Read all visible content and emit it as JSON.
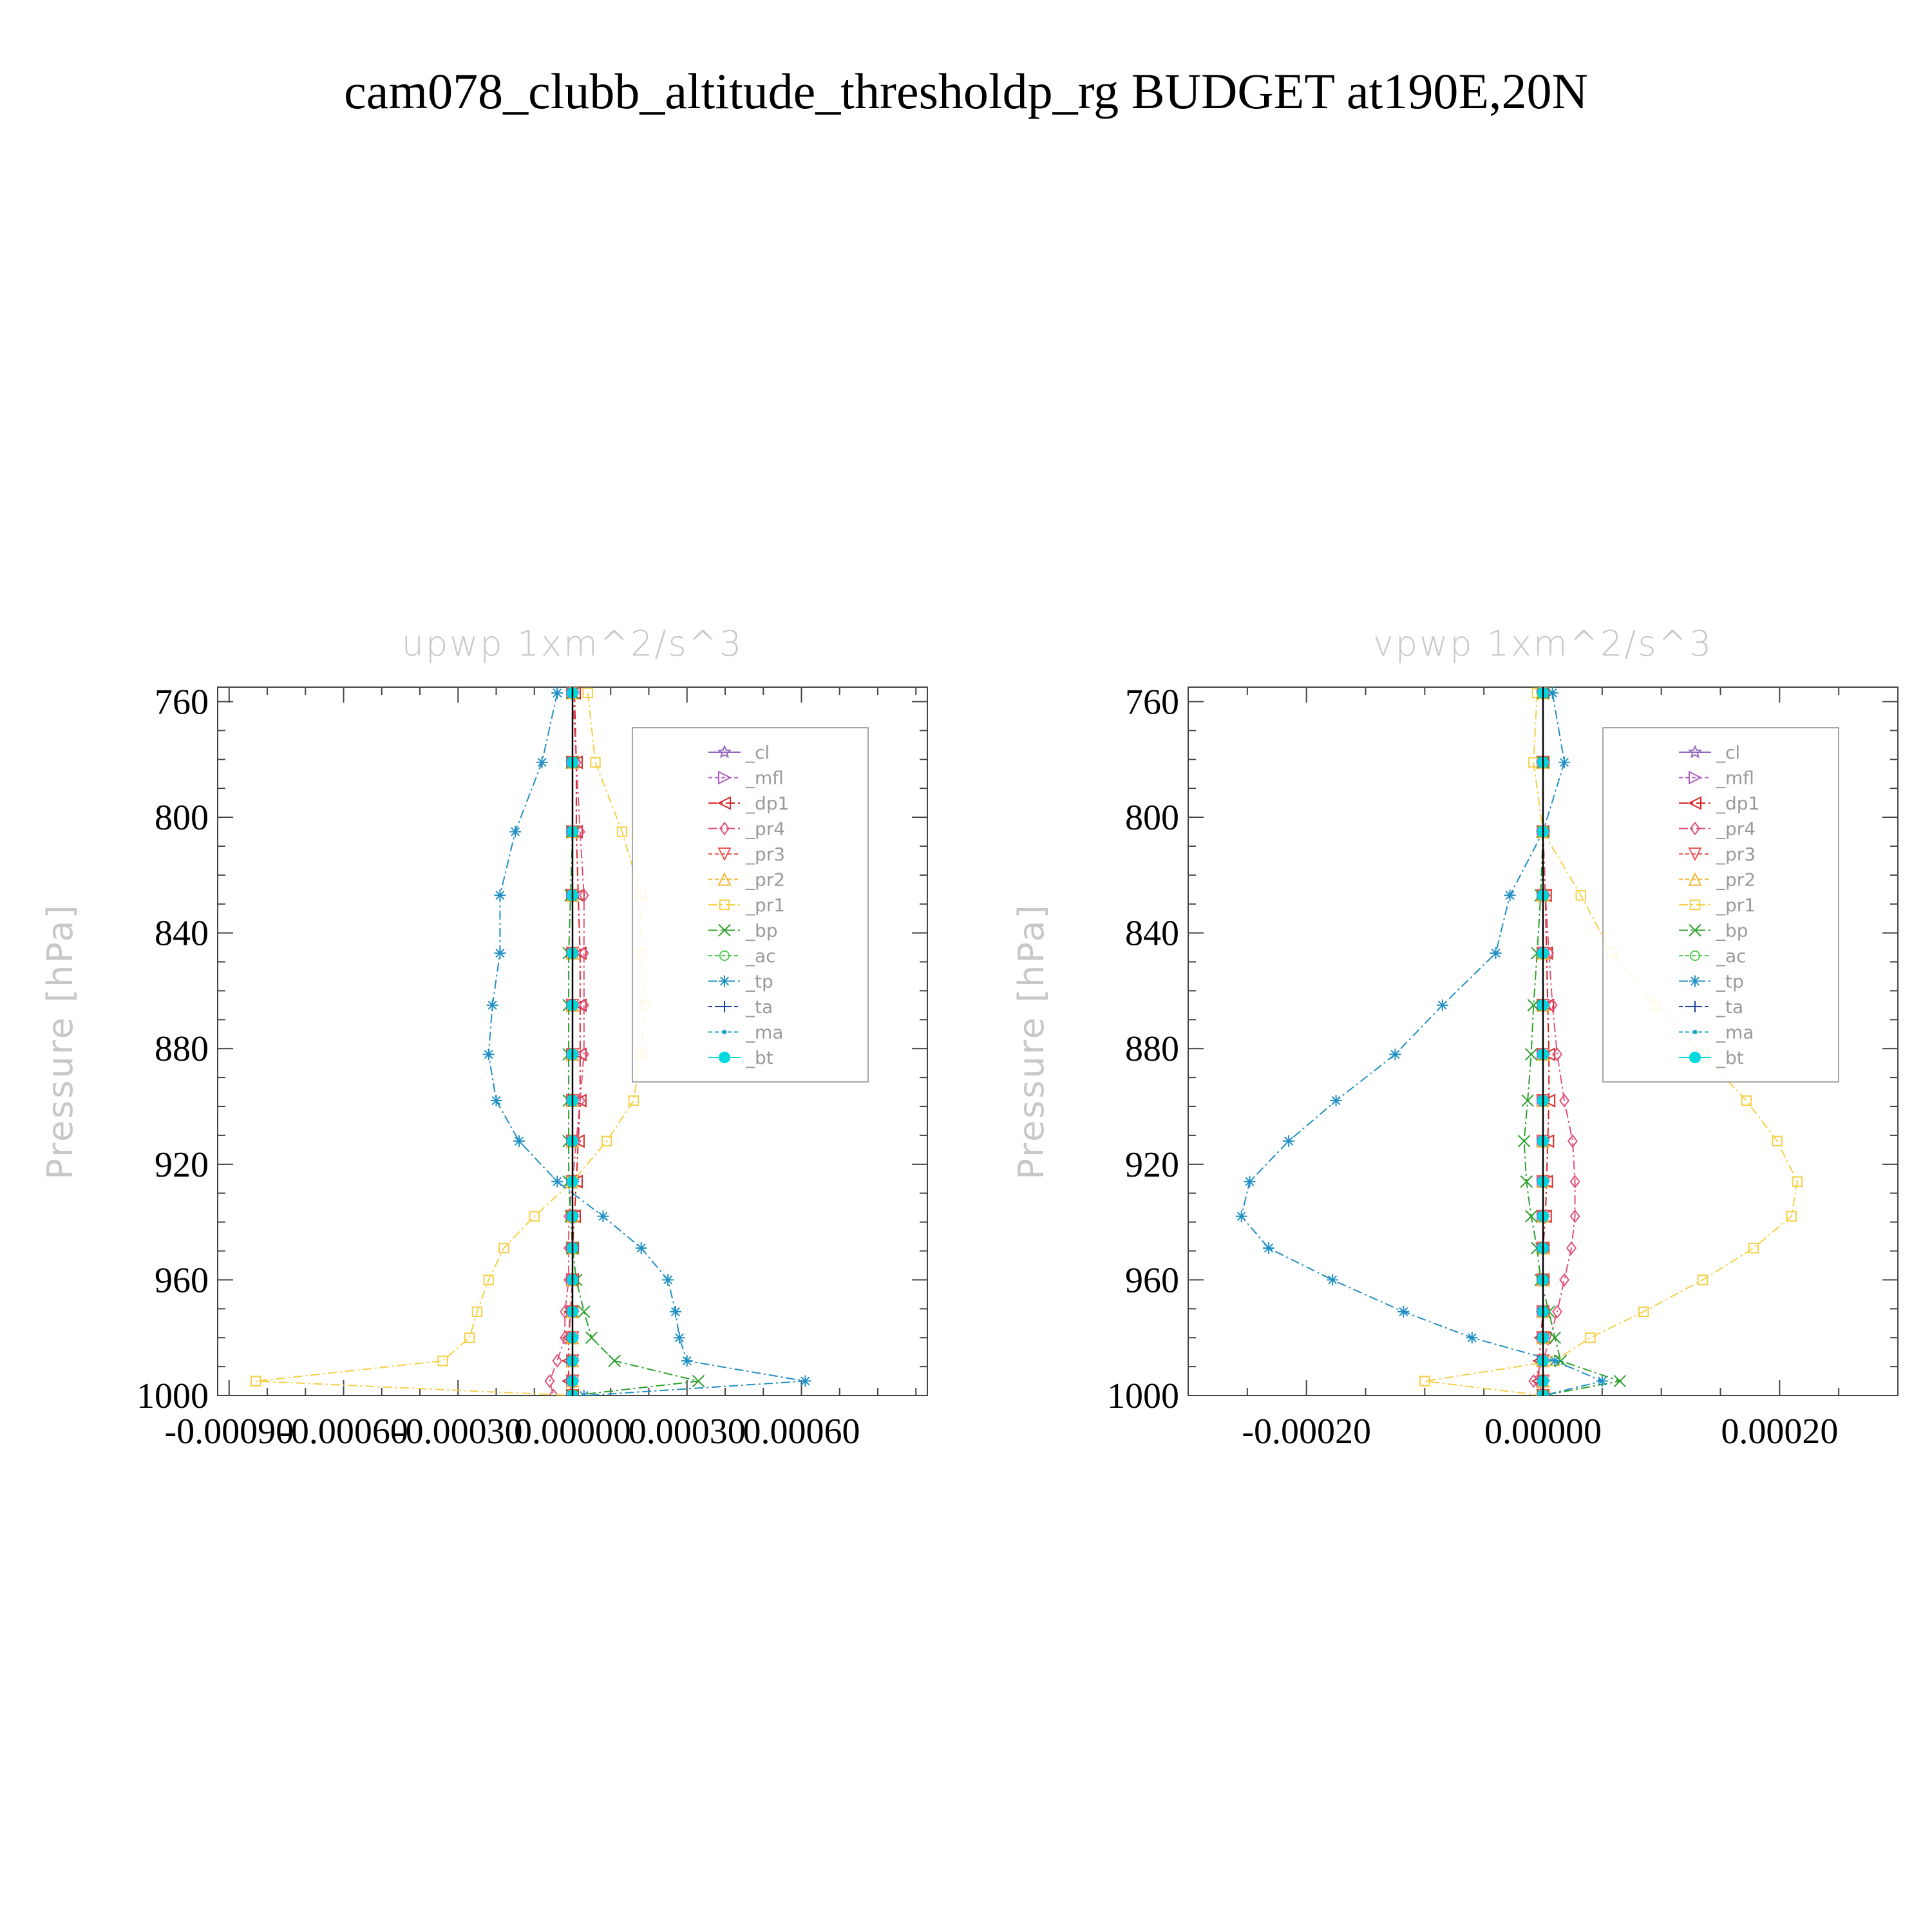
{
  "title": "cam078_clubb_altitude_thresholdp_rg  BUDGET at190E,20N",
  "chart_data": [
    {
      "type": "line",
      "title": "upwp    1xm^2/s^3",
      "ylabel": "Pressure  [hPa]",
      "xlabel": "",
      "xlim": [
        -0.00093,
        0.00093
      ],
      "ylim": [
        1000,
        755
      ],
      "y_inverted": true,
      "x_ticks": [
        -0.0009,
        -0.0006,
        -0.0003,
        0.0,
        0.0003,
        0.0006
      ],
      "x_tick_labels": [
        "-0.00090",
        "-0.00060",
        "-0.00030",
        "0.00000",
        "0.00030",
        "0.00060"
      ],
      "y_ticks": [
        760,
        800,
        840,
        880,
        920,
        960,
        1000
      ],
      "y_tick_labels": [
        "760",
        "800",
        "840",
        "880",
        "920",
        "960",
        "1000"
      ],
      "legend_position": "top-right",
      "grid": false,
      "levels": [
        757,
        781,
        805,
        827,
        847,
        865,
        882,
        898,
        912,
        926,
        938,
        949,
        960,
        971,
        980,
        988,
        995,
        1000
      ],
      "series": [
        {
          "name": "_cl",
          "color": "#9467bd",
          "marker": "star",
          "dash": "solid",
          "values": [
            0,
            0,
            0,
            0,
            0,
            0,
            0,
            0,
            0,
            0,
            0,
            0,
            0,
            0,
            0,
            0,
            0,
            0
          ]
        },
        {
          "name": "_mfl",
          "color": "#b05cc4",
          "marker": "triangle-right",
          "dash": "6 4",
          "values": [
            0,
            0,
            0,
            0,
            0,
            0,
            0,
            0,
            0,
            0,
            0,
            0,
            0,
            0,
            0,
            0,
            0,
            0
          ]
        },
        {
          "name": "_dp1",
          "color": "#d62728",
          "marker": "triangle-left",
          "dash": "14 5 3 5",
          "values": [
            5e-06,
            1e-05,
            1e-05,
            1.5e-05,
            2e-05,
            2e-05,
            2e-05,
            2e-05,
            1.5e-05,
            1e-05,
            5e-06,
            0,
            0,
            -5e-06,
            -1e-05,
            -1e-05,
            -1e-05,
            0
          ]
        },
        {
          "name": "_pr4",
          "color": "#e0507a",
          "marker": "diamond",
          "dash": "14 5 3 5",
          "values": [
            0,
            1e-05,
            2e-05,
            3e-05,
            3e-05,
            3e-05,
            3e-05,
            2e-05,
            1e-05,
            0,
            -1e-05,
            -1e-05,
            -1e-05,
            -2e-05,
            -2e-05,
            -4e-05,
            -6e-05,
            -5e-05
          ]
        },
        {
          "name": "_pr3",
          "color": "#ee5555",
          "marker": "triangle-down",
          "dash": "6 4",
          "values": [
            0,
            0,
            0,
            0,
            0,
            0,
            0,
            0,
            0,
            0,
            0,
            0,
            0,
            0,
            0,
            0,
            0,
            0
          ]
        },
        {
          "name": "_pr2",
          "color": "#f4b63a",
          "marker": "triangle-up",
          "dash": "6 4",
          "values": [
            0,
            0,
            0,
            0,
            0,
            0,
            0,
            0,
            0,
            0,
            0,
            0,
            0,
            0,
            0,
            0,
            0,
            0
          ]
        },
        {
          "name": "_pr1",
          "color": "#f7cf45",
          "marker": "square",
          "dash": "14 5 3 5",
          "values": [
            4e-05,
            6e-05,
            0.00013,
            0.00018,
            0.00018,
            0.00019,
            0.00018,
            0.00016,
            9e-05,
            0.0,
            -0.0001,
            -0.00018,
            -0.00022,
            -0.00025,
            -0.00027,
            -0.00034,
            -0.00083,
            0
          ]
        },
        {
          "name": "_bp",
          "color": "#2ca02c",
          "marker": "x",
          "dash": "14 5 3 5",
          "values": [
            0,
            0,
            0,
            -5e-06,
            -1e-05,
            -1e-05,
            -1e-05,
            -1e-05,
            -1e-05,
            -1e-05,
            -5e-06,
            0,
            1e-05,
            3e-05,
            5e-05,
            0.00011,
            0.00033,
            0
          ]
        },
        {
          "name": "_ac",
          "color": "#55cc55",
          "marker": "circle",
          "dash": "6 4",
          "values": [
            0,
            0,
            0,
            0,
            0,
            0,
            0,
            0,
            0,
            0,
            0,
            0,
            0,
            0,
            0,
            0,
            0,
            0
          ]
        },
        {
          "name": "_tp",
          "color": "#1f8fc4",
          "marker": "asterisk",
          "dash": "14 5 3 5",
          "values": [
            -4e-05,
            -8e-05,
            -0.00015,
            -0.00019,
            -0.00019,
            -0.00021,
            -0.00022,
            -0.0002,
            -0.00014,
            -4e-05,
            8e-05,
            0.00018,
            0.00025,
            0.00027,
            0.00028,
            0.0003,
            0.00061,
            3e-05
          ]
        },
        {
          "name": "_ta",
          "color": "#1f3fa8",
          "marker": "plus",
          "dash": "6 4",
          "values": [
            0,
            0,
            0,
            0,
            0,
            0,
            0,
            0,
            0,
            0,
            0,
            0,
            0,
            0,
            0,
            0,
            0,
            0
          ]
        },
        {
          "name": "_ma",
          "color": "#17a6c8",
          "marker": "dot",
          "dash": "6 4",
          "values": [
            0,
            0,
            0,
            0,
            0,
            0,
            0,
            0,
            0,
            0,
            0,
            0,
            0,
            0,
            0,
            0,
            0,
            0
          ]
        },
        {
          "name": "_bt",
          "color": "#00d8e0",
          "marker": "filled-circle",
          "dash": "solid",
          "values": [
            0,
            0,
            0,
            0,
            0,
            0,
            0,
            0,
            0,
            0,
            0,
            0,
            0,
            0,
            0,
            0,
            0,
            0
          ]
        }
      ]
    },
    {
      "type": "line",
      "title": "vpwp    1xm^2/s^3",
      "ylabel": "Pressure  [hPa]",
      "xlabel": "",
      "xlim": [
        -0.0003,
        0.0003
      ],
      "ylim": [
        1000,
        755
      ],
      "y_inverted": true,
      "x_ticks": [
        -0.0002,
        0.0,
        0.0002
      ],
      "x_tick_labels": [
        "-0.00020",
        "0.00000",
        "0.00020"
      ],
      "y_ticks": [
        760,
        800,
        840,
        880,
        920,
        960,
        1000
      ],
      "y_tick_labels": [
        "760",
        "800",
        "840",
        "880",
        "920",
        "960",
        "1000"
      ],
      "legend_position": "top-right",
      "grid": false,
      "levels": [
        757,
        781,
        805,
        827,
        847,
        865,
        882,
        898,
        912,
        926,
        938,
        949,
        960,
        971,
        980,
        988,
        995,
        1000
      ],
      "series": [
        {
          "name": "_cl",
          "color": "#9467bd",
          "marker": "star",
          "dash": "solid",
          "values": [
            0,
            0,
            0,
            0,
            0,
            0,
            0,
            0,
            0,
            0,
            0,
            0,
            0,
            0,
            0,
            0,
            0,
            0
          ]
        },
        {
          "name": "_mfl",
          "color": "#b05cc4",
          "marker": "triangle-right",
          "dash": "6 4",
          "values": [
            0,
            0,
            0,
            0,
            0,
            0,
            0,
            0,
            0,
            0,
            0,
            0,
            0,
            0,
            0,
            0,
            0,
            0
          ]
        },
        {
          "name": "_dp1",
          "color": "#d62728",
          "marker": "triangle-left",
          "dash": "14 5 3 5",
          "values": [
            0,
            0,
            0,
            2e-06,
            3e-06,
            4e-06,
            5e-06,
            5e-06,
            4e-06,
            3e-06,
            2e-06,
            0,
            0,
            0,
            -2e-06,
            -3e-06,
            -4e-06,
            0
          ]
        },
        {
          "name": "_pr4",
          "color": "#e0507a",
          "marker": "diamond",
          "dash": "14 5 3 5",
          "values": [
            0,
            0,
            0,
            2e-06,
            5e-06,
            8e-06,
            1.2e-05,
            1.8e-05,
            2.5e-05,
            2.7e-05,
            2.7e-05,
            2.4e-05,
            1.8e-05,
            1.2e-05,
            6e-06,
            0,
            -8e-06,
            0
          ]
        },
        {
          "name": "_pr3",
          "color": "#ee5555",
          "marker": "triangle-down",
          "dash": "6 4",
          "values": [
            0,
            0,
            0,
            0,
            0,
            0,
            0,
            0,
            0,
            0,
            0,
            0,
            0,
            0,
            0,
            0,
            0,
            0
          ]
        },
        {
          "name": "_pr2",
          "color": "#f4b63a",
          "marker": "triangle-up",
          "dash": "6 4",
          "values": [
            0,
            0,
            0,
            0,
            0,
            0,
            0,
            0,
            0,
            0,
            0,
            0,
            0,
            0,
            0,
            0,
            0,
            0
          ]
        },
        {
          "name": "_pr1",
          "color": "#f7cf45",
          "marker": "square",
          "dash": "14 5 3 5",
          "values": [
            -5e-06,
            -8e-06,
            0.0,
            3.2e-05,
            5.8e-05,
            9.5e-05,
            0.000135,
            0.000172,
            0.000198,
            0.000215,
            0.00021,
            0.000178,
            0.000135,
            8.5e-05,
            4e-05,
            1e-05,
            -0.0001,
            0
          ]
        },
        {
          "name": "_bp",
          "color": "#2ca02c",
          "marker": "x",
          "dash": "14 5 3 5",
          "values": [
            0,
            0,
            0,
            -2e-06,
            -5e-06,
            -8e-06,
            -1e-05,
            -1.3e-05,
            -1.6e-05,
            -1.4e-05,
            -1e-05,
            -5e-06,
            -2e-06,
            5e-06,
            1e-05,
            1.5e-05,
            6.5e-05,
            0
          ]
        },
        {
          "name": "_ac",
          "color": "#55cc55",
          "marker": "circle",
          "dash": "6 4",
          "values": [
            0,
            0,
            0,
            0,
            0,
            0,
            0,
            0,
            0,
            0,
            0,
            0,
            0,
            0,
            0,
            0,
            0,
            0
          ]
        },
        {
          "name": "_tp",
          "color": "#1f8fc4",
          "marker": "asterisk",
          "dash": "14 5 3 5",
          "values": [
            8e-06,
            1.8e-05,
            0.0,
            -2.8e-05,
            -4e-05,
            -8.5e-05,
            -0.000125,
            -0.000175,
            -0.000215,
            -0.000248,
            -0.000255,
            -0.000232,
            -0.000178,
            -0.000118,
            -6e-05,
            1e-05,
            5e-05,
            0
          ]
        },
        {
          "name": "_ta",
          "color": "#1f3fa8",
          "marker": "plus",
          "dash": "6 4",
          "values": [
            0,
            0,
            0,
            0,
            0,
            0,
            0,
            0,
            0,
            0,
            0,
            0,
            0,
            0,
            0,
            0,
            0,
            0
          ]
        },
        {
          "name": "_ma",
          "color": "#17a6c8",
          "marker": "dot",
          "dash": "6 4",
          "values": [
            0,
            0,
            0,
            0,
            0,
            0,
            0,
            0,
            0,
            0,
            0,
            0,
            0,
            0,
            0,
            0,
            0,
            0
          ]
        },
        {
          "name": "_bt",
          "color": "#00d8e0",
          "marker": "filled-circle",
          "dash": "solid",
          "values": [
            0,
            0,
            0,
            0,
            0,
            0,
            0,
            0,
            0,
            0,
            0,
            0,
            0,
            0,
            0,
            0,
            0,
            0
          ]
        }
      ]
    }
  ]
}
